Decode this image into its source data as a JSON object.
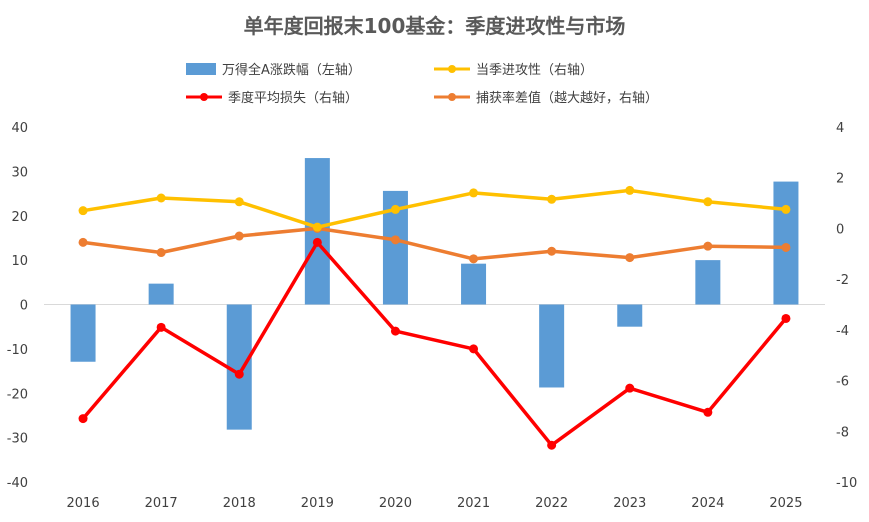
{
  "chart_data": {
    "type": "bar+line",
    "title": "单年度回报末100基金：季度进攻性与市场",
    "categories": [
      "2016",
      "2017",
      "2018",
      "2019",
      "2020",
      "2021",
      "2022",
      "2023",
      "2024",
      "2025"
    ],
    "left_axis": {
      "min": -40,
      "max": 40,
      "ticks": [
        40,
        30,
        20,
        10,
        0,
        -10,
        -20,
        -30,
        -40
      ],
      "tick_labels": [
        "40",
        "30",
        "20",
        "10",
        "0",
        "-10",
        "-20",
        "-30",
        "-40"
      ]
    },
    "right_axis": {
      "min": -10,
      "max": 4,
      "ticks": [
        4,
        2,
        0,
        -2,
        -4,
        -6,
        -8,
        -10
      ],
      "tick_labels": [
        "4",
        "2",
        "0",
        "-2",
        "-4",
        "-6",
        "-8",
        "-10"
      ]
    },
    "series": [
      {
        "key": "bar",
        "name": "万得全A涨跌幅（左轴）",
        "type": "bar",
        "axis": "left",
        "color": "#5B9BD5",
        "values": [
          -12.9,
          4.7,
          -28.2,
          33.0,
          25.6,
          9.2,
          -18.7,
          -5.0,
          10.0,
          27.7
        ]
      },
      {
        "key": "attack",
        "name": "当季进攻性（右轴）",
        "type": "line",
        "axis": "right",
        "color": "#FFC000",
        "values": [
          0.7,
          1.2,
          1.05,
          0.05,
          0.75,
          1.4,
          1.15,
          1.5,
          1.05,
          0.75
        ]
      },
      {
        "key": "loss",
        "name": "季度平均损失（右轴）",
        "type": "line",
        "axis": "right",
        "color": "#FF0000",
        "values": [
          -7.5,
          -3.9,
          -5.75,
          -0.55,
          -4.05,
          -4.75,
          -8.55,
          -6.3,
          -7.25,
          -3.55
        ]
      },
      {
        "key": "capture",
        "name": "捕获率差值（越大越好，右轴）",
        "type": "line",
        "axis": "right",
        "color": "#ED7D31",
        "values": [
          -0.55,
          -0.95,
          -0.3,
          0.0,
          -0.45,
          -1.2,
          -0.9,
          -1.15,
          -0.7,
          -0.75
        ]
      }
    ]
  }
}
